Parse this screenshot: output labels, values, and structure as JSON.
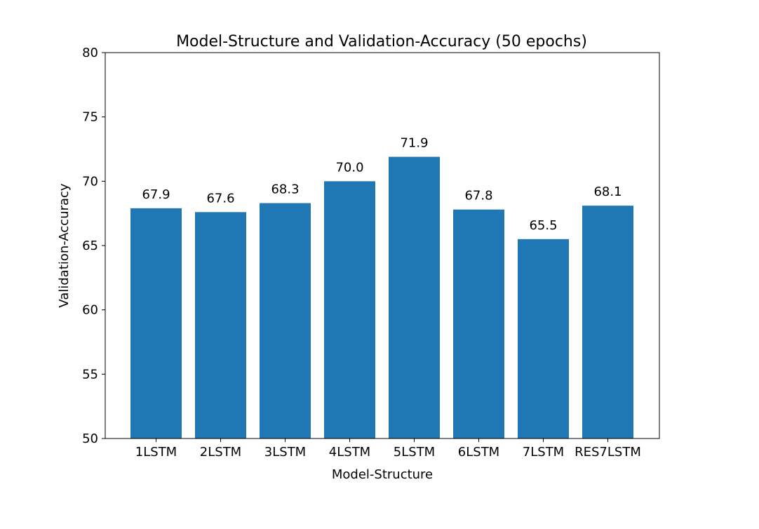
{
  "chart_data": {
    "type": "bar",
    "title": "Model-Structure and Validation-Accuracy (50 epochs)",
    "xlabel": "Model-Structure",
    "ylabel": "Validation-Accuracy",
    "categories": [
      "1LSTM",
      "2LSTM",
      "3LSTM",
      "4LSTM",
      "5LSTM",
      "6LSTM",
      "7LSTM",
      "RES7LSTM"
    ],
    "values": [
      67.9,
      67.6,
      68.3,
      70.0,
      71.9,
      67.8,
      65.5,
      68.1
    ],
    "data_labels": [
      "67.9",
      "67.6",
      "68.3",
      "70.0",
      "71.9",
      "67.8",
      "65.5",
      "68.1"
    ],
    "ylim": [
      50,
      80
    ],
    "yticks": [
      50,
      55,
      60,
      65,
      70,
      75,
      80
    ],
    "grid": false,
    "legend": "none",
    "bar_color": "#1f77b4"
  }
}
